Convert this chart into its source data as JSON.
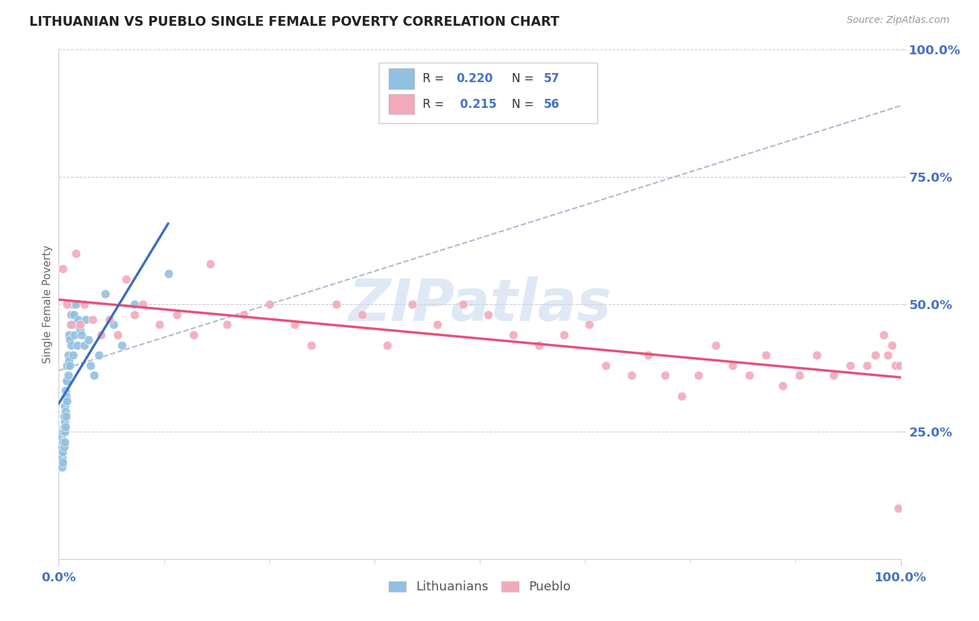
{
  "title": "LITHUANIAN VS PUEBLO SINGLE FEMALE POVERTY CORRELATION CHART",
  "source": "Source: ZipAtlas.com",
  "ylabel": "Single Female Poverty",
  "xlim": [
    0,
    1
  ],
  "ylim": [
    0,
    1
  ],
  "xtick_labels": [
    "0.0%",
    "100.0%"
  ],
  "ytick_labels": [
    "25.0%",
    "50.0%",
    "75.0%",
    "100.0%"
  ],
  "ytick_positions": [
    0.25,
    0.5,
    0.75,
    1.0
  ],
  "color_lithuanian": "#92C0E0",
  "color_pueblo": "#F2AABB",
  "color_line_lithuanian": "#3A6EBF",
  "color_line_pueblo": "#E8507A",
  "color_line_gray": "#AABBD0",
  "watermark": "ZIPatlas",
  "background_color": "#FFFFFF",
  "grid_color": "#CCCCCC",
  "lith_x": [
    0.002,
    0.003,
    0.003,
    0.004,
    0.004,
    0.004,
    0.005,
    0.005,
    0.005,
    0.005,
    0.006,
    0.006,
    0.006,
    0.007,
    0.007,
    0.007,
    0.007,
    0.008,
    0.008,
    0.008,
    0.009,
    0.009,
    0.009,
    0.01,
    0.01,
    0.01,
    0.011,
    0.011,
    0.012,
    0.012,
    0.013,
    0.013,
    0.014,
    0.015,
    0.015,
    0.016,
    0.017,
    0.017,
    0.018,
    0.019,
    0.02,
    0.021,
    0.022,
    0.023,
    0.025,
    0.027,
    0.03,
    0.032,
    0.035,
    0.038,
    0.042,
    0.048,
    0.055,
    0.065,
    0.075,
    0.09,
    0.13
  ],
  "lith_y": [
    0.21,
    0.24,
    0.19,
    0.22,
    0.2,
    0.18,
    0.25,
    0.23,
    0.21,
    0.19,
    0.28,
    0.26,
    0.22,
    0.3,
    0.27,
    0.25,
    0.23,
    0.33,
    0.29,
    0.26,
    0.35,
    0.32,
    0.28,
    0.38,
    0.35,
    0.31,
    0.4,
    0.36,
    0.44,
    0.39,
    0.43,
    0.38,
    0.46,
    0.48,
    0.42,
    0.5,
    0.46,
    0.4,
    0.48,
    0.44,
    0.5,
    0.46,
    0.42,
    0.47,
    0.45,
    0.44,
    0.42,
    0.47,
    0.43,
    0.38,
    0.36,
    0.4,
    0.52,
    0.46,
    0.42,
    0.5,
    0.56
  ],
  "pueblo_x": [
    0.005,
    0.01,
    0.015,
    0.02,
    0.025,
    0.03,
    0.04,
    0.05,
    0.06,
    0.07,
    0.08,
    0.09,
    0.1,
    0.12,
    0.14,
    0.16,
    0.18,
    0.2,
    0.22,
    0.25,
    0.28,
    0.3,
    0.33,
    0.36,
    0.39,
    0.42,
    0.45,
    0.48,
    0.51,
    0.54,
    0.57,
    0.6,
    0.63,
    0.65,
    0.68,
    0.7,
    0.72,
    0.74,
    0.76,
    0.78,
    0.8,
    0.82,
    0.84,
    0.86,
    0.88,
    0.9,
    0.92,
    0.94,
    0.96,
    0.97,
    0.98,
    0.985,
    0.99,
    0.994,
    0.997,
    0.999
  ],
  "pueblo_y": [
    0.57,
    0.5,
    0.46,
    0.6,
    0.46,
    0.5,
    0.47,
    0.44,
    0.47,
    0.44,
    0.55,
    0.48,
    0.5,
    0.46,
    0.48,
    0.44,
    0.58,
    0.46,
    0.48,
    0.5,
    0.46,
    0.42,
    0.5,
    0.48,
    0.42,
    0.5,
    0.46,
    0.5,
    0.48,
    0.44,
    0.42,
    0.44,
    0.46,
    0.38,
    0.36,
    0.4,
    0.36,
    0.32,
    0.36,
    0.42,
    0.38,
    0.36,
    0.4,
    0.34,
    0.36,
    0.4,
    0.36,
    0.38,
    0.38,
    0.4,
    0.44,
    0.4,
    0.42,
    0.38,
    0.1,
    0.38
  ]
}
